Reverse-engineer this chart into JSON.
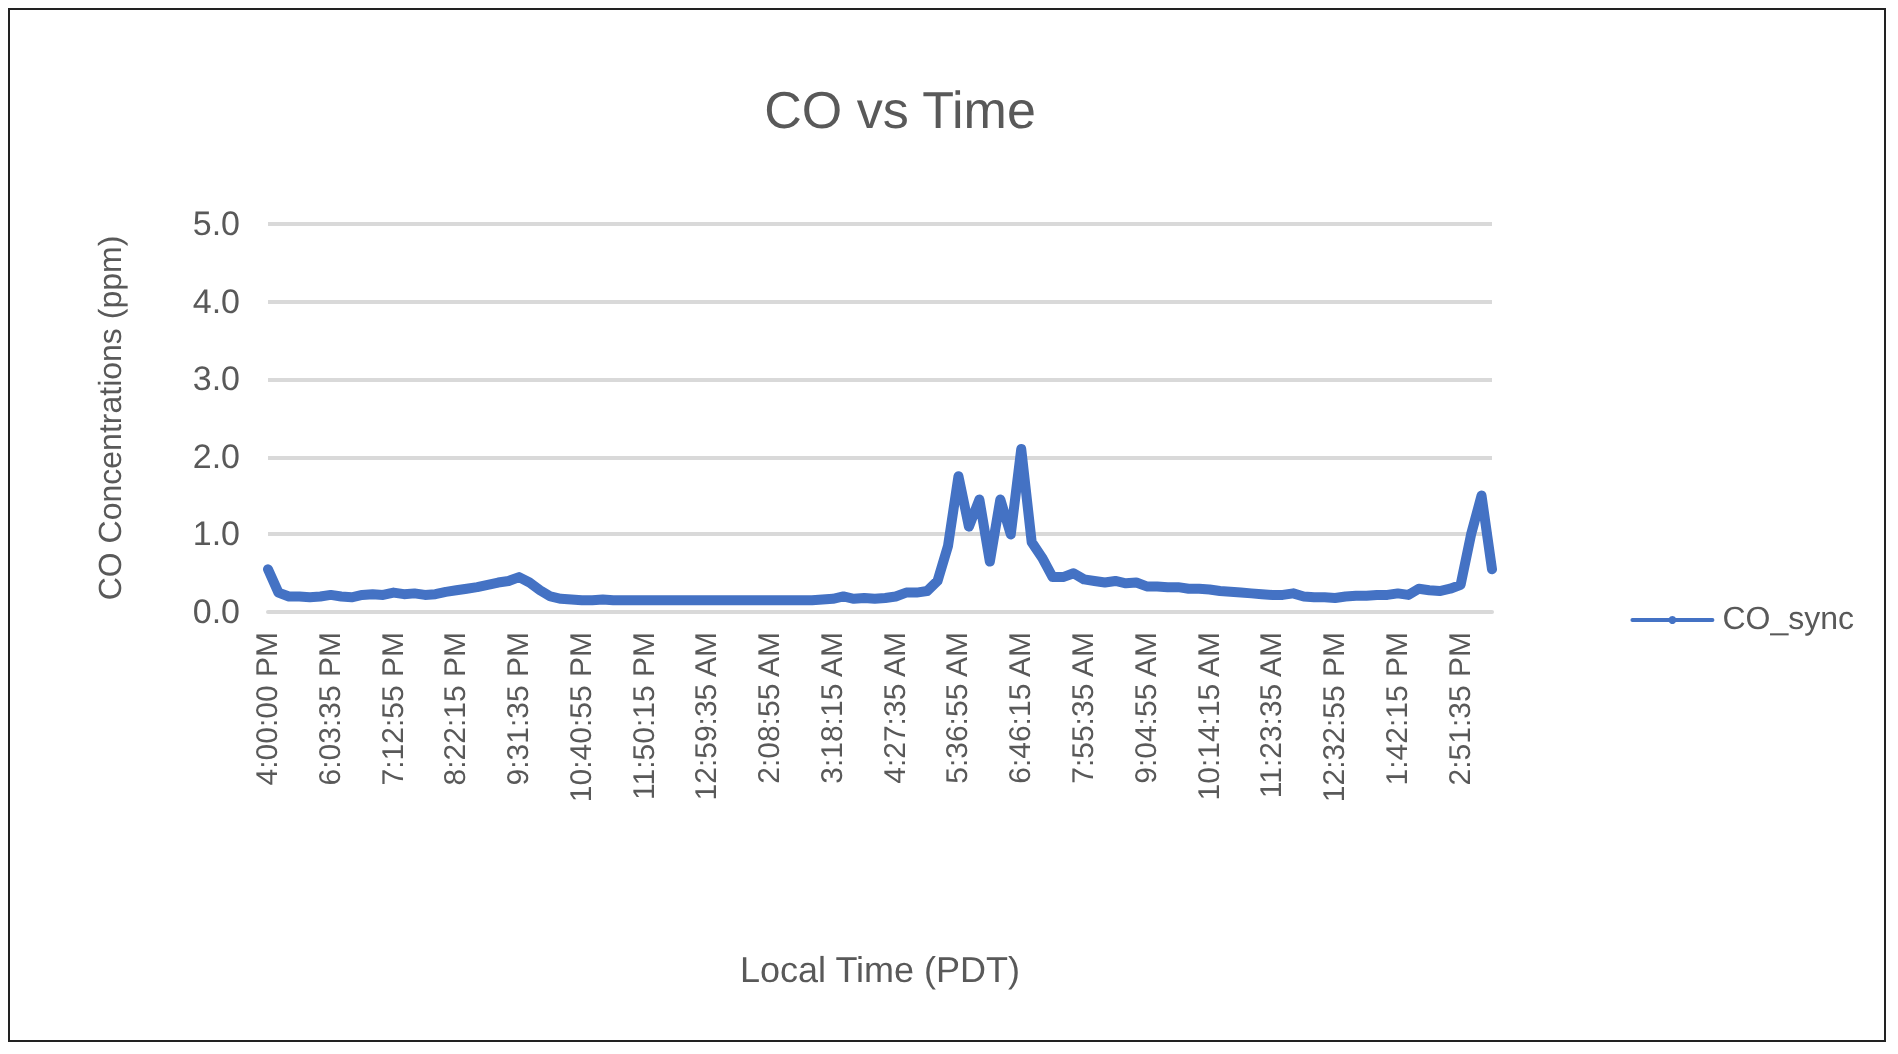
{
  "chart_data": {
    "type": "line",
    "title": "CO vs Time",
    "xlabel": "Local Time (PDT)",
    "ylabel": "CO Concentrations (ppm)",
    "categories": [
      "4:00:00 PM",
      null,
      null,
      null,
      null,
      null,
      "6:03:35 PM",
      null,
      null,
      null,
      null,
      null,
      "7:12:55 PM",
      null,
      null,
      null,
      null,
      null,
      "8:22:15 PM",
      null,
      null,
      null,
      null,
      null,
      "9:31:35 PM",
      null,
      null,
      null,
      null,
      null,
      "10:40:55 PM",
      null,
      null,
      null,
      null,
      null,
      "11:50:15 PM",
      null,
      null,
      null,
      null,
      null,
      "12:59:35 AM",
      null,
      null,
      null,
      null,
      null,
      "2:08:55 AM",
      null,
      null,
      null,
      null,
      null,
      "3:18:15 AM",
      null,
      null,
      null,
      null,
      null,
      "4:27:35 AM",
      null,
      null,
      null,
      null,
      null,
      "5:36:55 AM",
      null,
      null,
      null,
      null,
      null,
      "6:46:15 AM",
      null,
      null,
      null,
      null,
      null,
      "7:55:35 AM",
      null,
      null,
      null,
      null,
      null,
      "9:04:55 AM",
      null,
      null,
      null,
      null,
      null,
      "10:14:15 AM",
      null,
      null,
      null,
      null,
      null,
      "11:23:35 AM",
      null,
      null,
      null,
      null,
      null,
      "12:32:55 PM",
      null,
      null,
      null,
      null,
      null,
      "1:42:15 PM",
      null,
      null,
      null,
      null,
      null,
      "2:51:35 PM",
      null,
      null,
      null
    ],
    "series": [
      {
        "name": "CO_sync",
        "color": "#4472c4",
        "values": [
          0.55,
          0.25,
          0.2,
          0.2,
          0.19,
          0.2,
          0.22,
          0.2,
          0.19,
          0.22,
          0.23,
          0.22,
          0.25,
          0.23,
          0.24,
          0.22,
          0.23,
          0.26,
          0.28,
          0.3,
          0.32,
          0.35,
          0.38,
          0.4,
          0.45,
          0.38,
          0.28,
          0.2,
          0.17,
          0.16,
          0.15,
          0.15,
          0.16,
          0.15,
          0.15,
          0.15,
          0.15,
          0.15,
          0.15,
          0.15,
          0.15,
          0.15,
          0.15,
          0.15,
          0.15,
          0.15,
          0.15,
          0.15,
          0.15,
          0.15,
          0.15,
          0.15,
          0.15,
          0.16,
          0.17,
          0.2,
          0.17,
          0.18,
          0.17,
          0.18,
          0.2,
          0.25,
          0.25,
          0.27,
          0.4,
          0.85,
          1.75,
          1.1,
          1.45,
          0.65,
          1.45,
          1.0,
          2.1,
          0.9,
          0.7,
          0.45,
          0.45,
          0.5,
          0.42,
          0.4,
          0.38,
          0.4,
          0.37,
          0.38,
          0.33,
          0.33,
          0.32,
          0.32,
          0.3,
          0.3,
          0.29,
          0.27,
          0.26,
          0.25,
          0.24,
          0.23,
          0.22,
          0.22,
          0.24,
          0.2,
          0.19,
          0.19,
          0.18,
          0.2,
          0.21,
          0.21,
          0.22,
          0.22,
          0.24,
          0.22,
          0.3,
          0.28,
          0.27,
          0.3,
          0.35,
          1.0,
          1.5,
          0.55
        ]
      }
    ],
    "ylim": [
      0,
      5
    ],
    "yticks": [
      {
        "value": 0,
        "label": "0.0"
      },
      {
        "value": 1,
        "label": "1.0"
      },
      {
        "value": 2,
        "label": "2.0"
      },
      {
        "value": 3,
        "label": "3.0"
      },
      {
        "value": 4,
        "label": "4.0"
      },
      {
        "value": 5,
        "label": "5.0"
      }
    ],
    "grid": "y",
    "legend": "right",
    "marker": "none",
    "line_style": "solid"
  }
}
